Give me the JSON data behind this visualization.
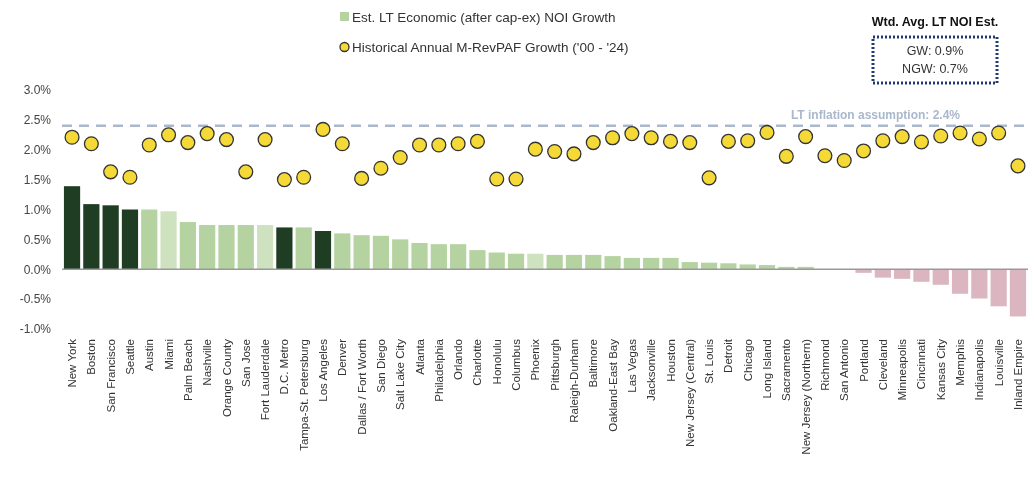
{
  "chart_data": {
    "type": "bar",
    "categories": [
      "New York",
      "Boston",
      "San Francisco",
      "Seattle",
      "Austin",
      "Miami",
      "Palm Beach",
      "Nashville",
      "Orange County",
      "San Jose",
      "Fort Lauderdale",
      "D.C. Metro",
      "Tampa-St. Petersburg",
      "Los Angeles",
      "Denver",
      "Dallas / Fort Worth",
      "San Diego",
      "Salt Lake City",
      "Atlanta",
      "Philadelphia",
      "Orlando",
      "Charlotte",
      "Honolulu",
      "Columbus",
      "Phoenix",
      "Pittsburgh",
      "Raleigh-Durham",
      "Baltimore",
      "Oakland-East Bay",
      "Las Vegas",
      "Jacksonville",
      "Houston",
      "New Jersey (Central)",
      "St. Louis",
      "Detroit",
      "Chicago",
      "Long Island",
      "Sacramento",
      "New Jersey (Northern)",
      "Richmond",
      "San Antonio",
      "Portland",
      "Cleveland",
      "Minneapolis",
      "Cincinnati",
      "Kansas City",
      "Memphis",
      "Indianapolis",
      "Louisville",
      "Inland Empire"
    ],
    "series": [
      {
        "name": "Est. LT Economic (after cap-ex) NOI Growth",
        "color": "#b5d3a0",
        "colors": [
          "#1f3d22",
          "#1f3d22",
          "#1f3d22",
          "#1f3d22",
          "#b5d3a0",
          "#cfe2bf",
          "#b5d3a0",
          "#b5d3a0",
          "#b5d3a0",
          "#b5d3a0",
          "#cfe2bf",
          "#1f3d22",
          "#b5d3a0",
          "#1f3d22",
          "#b5d3a0",
          "#b5d3a0",
          "#b5d3a0",
          "#b5d3a0",
          "#b5d3a0",
          "#b5d3a0",
          "#b5d3a0",
          "#b5d3a0",
          "#b5d3a0",
          "#b5d3a0",
          "#cfe2bf",
          "#b5d3a0",
          "#b5d3a0",
          "#b5d3a0",
          "#b5d3a0",
          "#b5d3a0",
          "#b5d3a0",
          "#b5d3a0",
          "#b5d3a0",
          "#b5d3a0",
          "#b5d3a0",
          "#b5d3a0",
          "#b5d3a0",
          "#b5d3a0",
          "#b5d3a0",
          "#b5d3a0",
          "#b5d3a0",
          "#dbb5c0",
          "#dbb5c0",
          "#dbb5c0",
          "#dbb5c0",
          "#dbb5c0",
          "#dbb5c0",
          "#dbb5c0",
          "#dbb5c0",
          "#dbb5c0"
        ],
        "values": [
          1.39,
          1.09,
          1.07,
          1.0,
          1.0,
          0.97,
          0.79,
          0.74,
          0.74,
          0.74,
          0.74,
          0.7,
          0.7,
          0.64,
          0.6,
          0.57,
          0.56,
          0.5,
          0.44,
          0.42,
          0.42,
          0.32,
          0.28,
          0.26,
          0.26,
          0.24,
          0.24,
          0.24,
          0.22,
          0.19,
          0.19,
          0.19,
          0.12,
          0.11,
          0.1,
          0.08,
          0.07,
          0.04,
          0.04,
          null,
          0.0,
          -0.06,
          -0.14,
          -0.16,
          -0.21,
          -0.26,
          -0.41,
          -0.49,
          -0.62,
          -0.79
        ]
      },
      {
        "type": "scatter",
        "name": "Historical Annual M-RevPAF Growth ('00 - '24)",
        "color": "#f5d936",
        "values": [
          2.21,
          2.1,
          1.63,
          1.54,
          2.08,
          2.25,
          2.12,
          2.27,
          2.17,
          1.63,
          2.17,
          1.5,
          1.54,
          2.34,
          2.1,
          1.52,
          1.69,
          1.87,
          2.08,
          2.08,
          2.1,
          2.14,
          1.51,
          1.51,
          2.01,
          1.97,
          1.93,
          2.12,
          2.2,
          2.27,
          2.2,
          2.14,
          2.12,
          1.53,
          2.14,
          2.15,
          2.29,
          1.89,
          2.22,
          1.9,
          1.82,
          1.98,
          2.15,
          2.22,
          2.13,
          2.23,
          2.28,
          2.18,
          2.28,
          1.73
        ]
      }
    ],
    "marker": "circle",
    "ylim": [
      -1,
      3
    ],
    "yticks": [
      {
        "value": -1,
        "label": "-1.0%"
      },
      {
        "value": -0.5,
        "label": "-0.5%"
      },
      {
        "value": 0,
        "label": "0.0%"
      },
      {
        "value": 0.5,
        "label": "0.5%"
      },
      {
        "value": 1,
        "label": "1.0%"
      },
      {
        "value": 1.5,
        "label": "1.5%"
      },
      {
        "value": 2,
        "label": "2.0%"
      },
      {
        "value": 2.5,
        "label": "2.5%"
      },
      {
        "value": 3,
        "label": "3.0%"
      }
    ],
    "ref_lines": [
      {
        "axis": "y",
        "value": 2.4,
        "label": "LT inflation assumption: 2.4%",
        "color": "#a9b8cc",
        "line_style": "dashed"
      }
    ],
    "annotations": [
      "Wtd. Avg. LT NOI Est.",
      "GW: 0.9%",
      "NGW: 0.7%"
    ],
    "legend": "top"
  }
}
